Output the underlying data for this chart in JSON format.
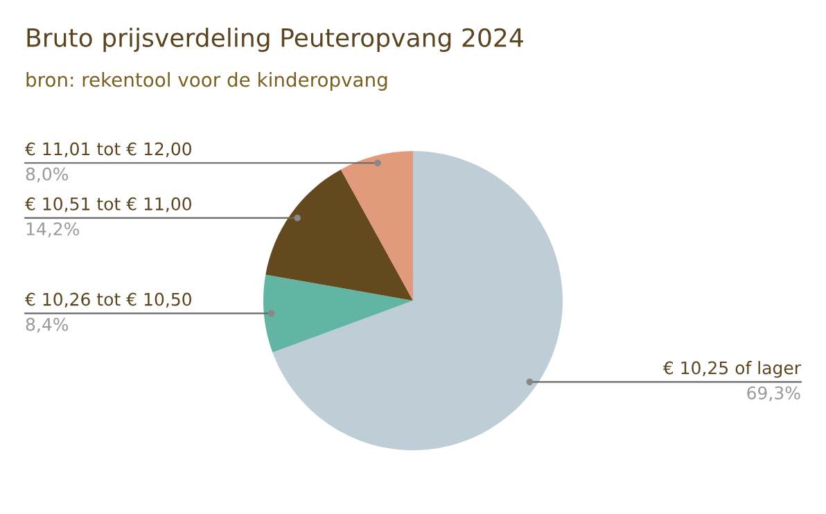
{
  "chart_data": {
    "type": "pie",
    "title": "Bruto prijsverdeling Peuteropvang 2024",
    "subtitle": "bron: rekentool voor de kinderopvang",
    "categories": [
      "€ 10,25 of lager",
      "€ 10,26 tot € 10,50",
      "€ 10,51 tot € 11,00",
      "€ 11,01 tot € 12,00"
    ],
    "values": [
      69.3,
      8.4,
      14.2,
      8.0
    ],
    "value_labels": [
      "69,3%",
      "8,4%",
      "14,2%",
      "8,0%"
    ],
    "colors": [
      "#bfcdd6",
      "#63b5a3",
      "#65491e",
      "#e19a7c"
    ],
    "legend": false
  }
}
